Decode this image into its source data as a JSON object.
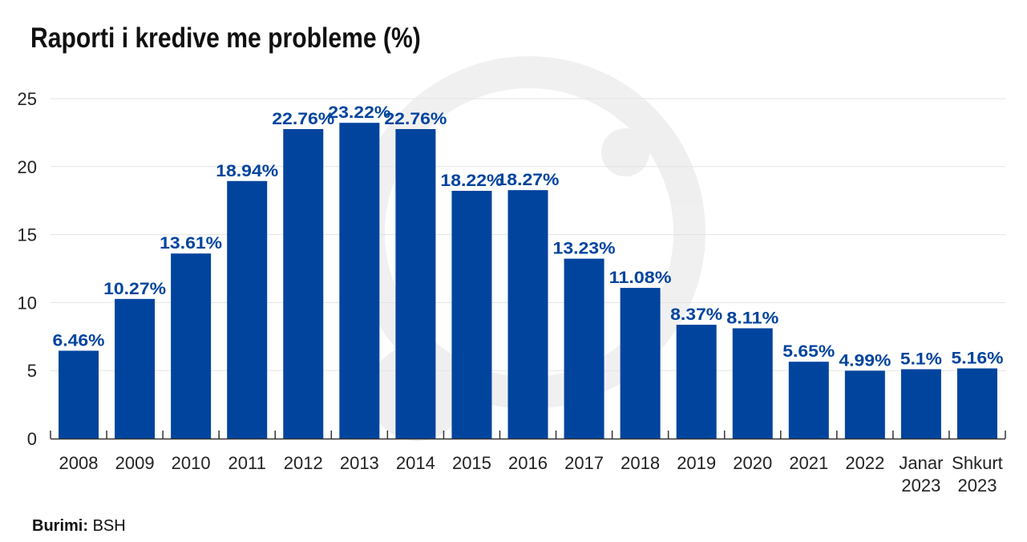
{
  "chart_data": {
    "type": "bar",
    "title": "Raporti i kredive me probleme (%)",
    "categories": [
      "2008",
      "2009",
      "2010",
      "2011",
      "2012",
      "2013",
      "2014",
      "2015",
      "2016",
      "2017",
      "2018",
      "2019",
      "2020",
      "2021",
      "2022",
      "Janar 2023",
      "Shkurt 2023"
    ],
    "values": [
      6.46,
      10.27,
      13.61,
      18.94,
      22.76,
      23.22,
      22.76,
      18.22,
      18.27,
      13.23,
      11.08,
      8.37,
      8.11,
      5.65,
      4.99,
      5.1,
      5.16
    ],
    "data_labels": [
      "6.46%",
      "10.27%",
      "13.61%",
      "18.94%",
      "22.76%",
      "23.22%",
      "22.76%",
      "18.22%",
      "18.27%",
      "13.23%",
      "11.08%",
      "8.37%",
      "8.11%",
      "5.65%",
      "4.99%",
      "5.1%",
      "5.16%"
    ],
    "xlabel": "",
    "ylabel": "",
    "ylim": [
      0,
      25
    ],
    "yticks": [
      0,
      5,
      10,
      15,
      20,
      25
    ],
    "grid": true,
    "colors": {
      "bar": "#00449e",
      "label": "#00449e",
      "grid": "#e3e3e3"
    }
  },
  "source": {
    "label": "Burimi:",
    "value": "BSH"
  }
}
